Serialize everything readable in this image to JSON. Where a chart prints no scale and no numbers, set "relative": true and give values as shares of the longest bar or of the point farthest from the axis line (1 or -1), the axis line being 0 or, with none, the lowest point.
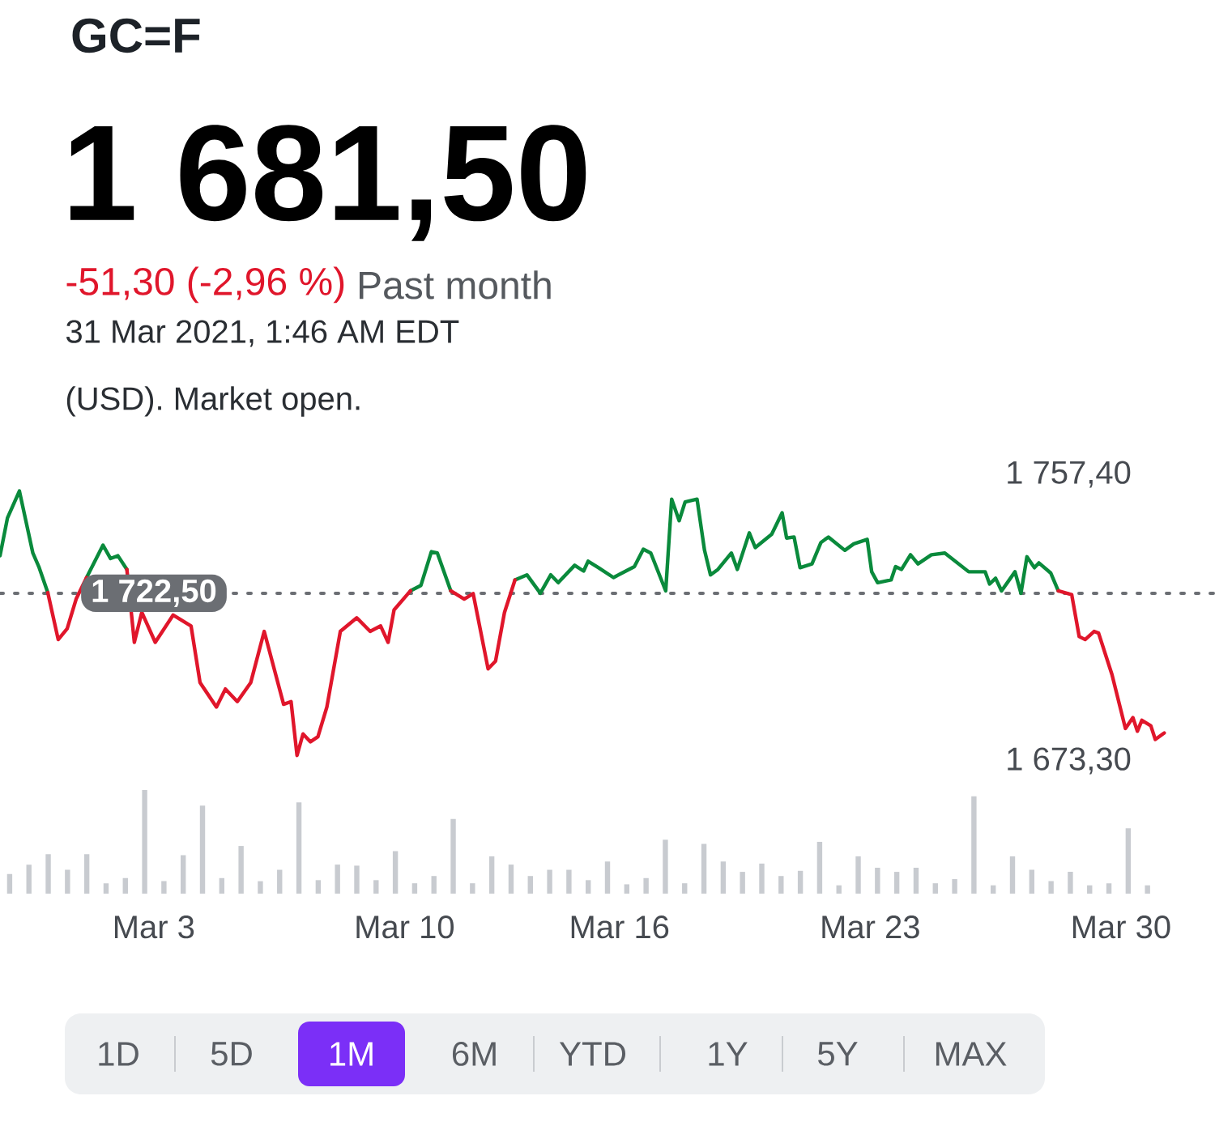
{
  "chart_data": [
    {
      "type": "line",
      "title": "GC=F",
      "subtitle": "1 681,50",
      "annotations": [
        "-51,30 (-2,96 %)",
        "Past month",
        "31 Mar 2021, 1:46 AM EDT",
        "(USD). Market open.",
        "1D",
        "5D",
        "1M",
        "6M",
        "YTD",
        "1Y",
        "5Y",
        "MAX"
      ],
      "x": [
        "2021-02-26T17:00",
        "2021-02-26T22:00",
        "2021-02-27T06:00",
        "2021-02-27T15:00",
        "2021-02-27T19:00",
        "2021-02-28T01:00",
        "2021-02-28T08:00",
        "2021-02-28T14:00",
        "2021-02-28T20:00",
        "2021-03-01T03:00",
        "2021-03-01T14:00",
        "2021-03-01T19:00",
        "2021-03-02T00:00",
        "2021-03-02T06:00",
        "2021-03-02T11:00",
        "2021-03-02T16:00",
        "2021-03-03T01:00",
        "2021-03-03T13:00",
        "2021-03-04T01:00",
        "2021-03-04T07:00",
        "2021-03-04T18:00",
        "2021-03-05T00:00",
        "2021-03-05T08:00",
        "2021-03-05T17:00",
        "2021-03-06T02:00",
        "2021-03-06T15:00",
        "2021-03-06T20:00",
        "2021-03-07T00:00",
        "2021-03-07T04:00",
        "2021-03-07T09:00",
        "2021-03-07T14:00",
        "2021-03-07T20:00",
        "2021-03-08T05:00",
        "2021-03-08T16:00",
        "2021-03-09T01:00",
        "2021-03-09T08:00",
        "2021-03-09T13:00",
        "2021-03-09T17:00",
        "2021-03-10T04:00",
        "2021-03-10T11:00",
        "2021-03-10T18:00",
        "2021-03-10T22:00",
        "2021-03-11T07:00",
        "2021-03-11T16:00",
        "2021-03-11T22:00",
        "2021-03-12T08:00",
        "2021-03-12T13:00",
        "2021-03-12T19:00",
        "2021-03-13T02:00",
        "2021-03-13T10:00",
        "2021-03-13T19:00",
        "2021-03-14T02:00",
        "2021-03-14T07:00",
        "2021-03-14T18:00",
        "2021-03-15T00:00",
        "2021-03-15T03:00",
        "2021-03-15T10:00",
        "2021-03-15T20:00",
        "2021-03-16T10:00",
        "2021-03-16T16:00",
        "2021-03-16T21:00",
        "2021-03-17T07:00",
        "2021-03-17T11:00",
        "2021-03-17T16:00",
        "2021-03-17T20:00",
        "2021-03-18T04:00",
        "2021-03-18T09:00",
        "2021-03-18T13:00",
        "2021-03-18T18:00",
        "2021-03-19T03:00",
        "2021-03-19T07:00",
        "2021-03-19T15:00",
        "2021-03-19T19:00",
        "2021-03-20T06:00",
        "2021-03-20T13:00",
        "2021-03-20T16:00",
        "2021-03-20T21:00",
        "2021-03-21T01:00",
        "2021-03-21T09:00",
        "2021-03-21T15:00",
        "2021-03-21T20:00",
        "2021-03-22T07:00",
        "2021-03-22T13:00",
        "2021-03-22T22:00",
        "2021-03-23T01:00",
        "2021-03-23T05:00",
        "2021-03-23T14:00",
        "2021-03-23T17:00",
        "2021-03-23T21:00",
        "2021-03-24T03:00",
        "2021-03-24T08:00",
        "2021-03-24T17:00",
        "2021-03-25T02:00",
        "2021-03-25T18:00",
        "2021-03-26T05:00",
        "2021-03-26T08:00",
        "2021-03-26T12:00",
        "2021-03-26T16:00",
        "2021-03-27T01:00",
        "2021-03-27T05:00",
        "2021-03-27T09:00",
        "2021-03-27T14:00",
        "2021-03-27T17:00",
        "2021-03-28T01:00",
        "2021-03-28T06:00",
        "2021-03-28T15:00",
        "2021-03-28T20:00",
        "2021-03-29T00:00",
        "2021-03-29T06:00",
        "2021-03-29T09:00",
        "2021-03-29T18:00",
        "2021-03-30T03:00",
        "2021-03-30T08:00",
        "2021-03-30T11:00",
        "2021-03-30T14:00",
        "2021-03-30T20:00",
        "2021-03-30T23:00",
        "2021-03-31T05:00"
      ],
      "xlim": [
        "2021-02-26T17:00",
        "2021-04-01T15:00"
      ],
      "xticks": [
        {
          "value": "2021-03-03",
          "label": "Mar 3"
        },
        {
          "value": "2021-03-10",
          "label": "Mar 10"
        },
        {
          "value": "2021-03-16",
          "label": "Mar 16"
        },
        {
          "value": "2021-03-23",
          "label": "Mar 23"
        },
        {
          "value": "2021-03-30",
          "label": "Mar 30"
        }
      ],
      "ylim": [
        1673.3,
        1757.4
      ],
      "yticks": [
        {
          "value": 1757.4,
          "label": "1 757,40"
        },
        {
          "value": 1673.3,
          "label": "1 673,30"
        }
      ],
      "ref_lines": [
        {
          "axis": "y",
          "value": 1722.5,
          "label": "1 722,50",
          "color": "#6b6e73",
          "line_style": "dotted"
        }
      ],
      "series": [
        {
          "color": "#0a8a3c",
          "values": [
            1733.5,
            1744.6,
            1752.5,
            1734.3,
            1730.3,
            1722.7,
            null,
            null,
            null,
            1727.1,
            1736.6,
            1732.7,
            1733.5,
            1729.5,
            null,
            null,
            null,
            null,
            null,
            null,
            null,
            null,
            null,
            null,
            null,
            null,
            null,
            null,
            null,
            null,
            null,
            null,
            null,
            null,
            null,
            null,
            null,
            null,
            1723.2,
            1724.8,
            1734.7,
            1734.3,
            1723.2,
            null,
            null,
            null,
            null,
            null,
            1726.4,
            1727.9,
            1722.5,
            1727.9,
            1725.6,
            1730.7,
            1729.0,
            1731.9,
            1730.0,
            1727.1,
            1730.3,
            1735.4,
            1734.3,
            1723.2,
            1750.1,
            1743.8,
            1749.3,
            1750.1,
            1735.1,
            1727.9,
            1729.5,
            1734.3,
            1729.5,
            1740.2,
            1735.9,
            1739.8,
            1746.1,
            1738.7,
            1739.0,
            1730.0,
            1731.1,
            1737.4,
            1739.0,
            1735.1,
            1737.0,
            1738.3,
            1728.8,
            1725.6,
            1726.4,
            1730.3,
            1729.5,
            1733.8,
            1731.1,
            1733.8,
            1734.3,
            1728.8,
            1728.8,
            1725.2,
            1726.9,
            1723.2,
            1728.8,
            1722.5,
            1733.2,
            1730.0,
            1731.4,
            1728.4,
            1723.2,
            null,
            null,
            null,
            null,
            null,
            null,
            null,
            null,
            null,
            null,
            null,
            null,
            null
          ]
        },
        {
          "color": "#e0162b",
          "values": [
            null,
            null,
            null,
            null,
            null,
            1722.7,
            1708.9,
            1712.1,
            1720.8,
            1727.1,
            null,
            null,
            null,
            1729.5,
            1708.1,
            1716.9,
            1708.1,
            1716.1,
            1712.9,
            1696.3,
            1689.1,
            1694.4,
            1690.7,
            1696.3,
            1711.3,
            1689.9,
            1690.7,
            1674.9,
            1681.2,
            1678.9,
            1680.4,
            1689.1,
            1711.3,
            1715.3,
            1711.3,
            1712.9,
            1708.1,
            1717.6,
            1723.2,
            null,
            null,
            null,
            1723.2,
            1720.8,
            1722.4,
            1700.3,
            1702.6,
            1716.9,
            1726.4,
            null,
            null,
            null,
            null,
            null,
            null,
            null,
            null,
            null,
            null,
            null,
            null,
            null,
            null,
            null,
            null,
            null,
            null,
            null,
            null,
            null,
            null,
            null,
            null,
            null,
            null,
            null,
            null,
            null,
            null,
            null,
            null,
            null,
            null,
            null,
            null,
            null,
            null,
            null,
            null,
            null,
            null,
            null,
            null,
            null,
            null,
            null,
            null,
            null,
            null,
            null,
            null,
            null,
            null,
            null,
            1723.2,
            1722.1,
            1709.8,
            1708.9,
            1711.3,
            1710.8,
            1698.6,
            1682.8,
            1686.0,
            1682.0,
            1685.2,
            1683.6,
            1679.6,
            1681.5
          ]
        }
      ]
    },
    {
      "type": "bar",
      "relative": true,
      "color": "#c8cbd0",
      "categories": [
        null,
        null,
        null,
        null,
        null,
        null,
        null,
        null,
        null,
        null,
        null,
        null,
        null,
        null,
        null,
        null,
        null,
        null,
        null,
        null,
        null,
        null,
        null,
        null,
        null,
        null,
        null,
        null,
        null,
        null,
        null,
        null,
        null,
        null,
        null,
        null,
        null,
        null,
        null,
        null,
        null,
        null,
        null,
        null,
        null,
        null,
        null,
        null,
        null,
        null,
        null,
        null,
        null,
        null,
        null,
        null,
        null,
        null,
        null,
        null
      ],
      "values": [
        0.19,
        0.28,
        0.38,
        0.23,
        0.38,
        0.1,
        0.15,
        1,
        0.12,
        0.37,
        0.85,
        0.15,
        0.46,
        0.12,
        0.23,
        0.88,
        0.13,
        0.28,
        0.27,
        0.13,
        0.41,
        0.1,
        0.17,
        0.72,
        0.1,
        0.36,
        0.28,
        0.17,
        0.23,
        0.23,
        0.13,
        0.31,
        0.09,
        0.15,
        0.52,
        0.1,
        0.48,
        0.31,
        0.21,
        0.29,
        0.17,
        0.22,
        0.5,
        0.08,
        0.36,
        0.25,
        0.21,
        0.25,
        0.1,
        0.14,
        0.94,
        0.08,
        0.36,
        0.23,
        0.12,
        0.21,
        0.08,
        0.1,
        0.63,
        0.08
      ]
    }
  ]
}
